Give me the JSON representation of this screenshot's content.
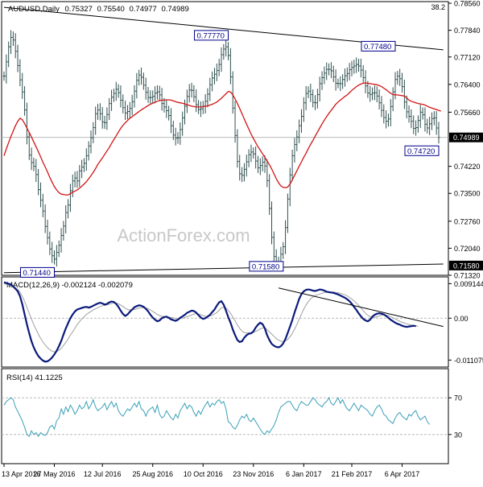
{
  "chart_data": [
    {
      "type": "ohlc",
      "title": "AUDUSD,Daily",
      "ohlc_header": [
        "0.75327",
        "0.75540",
        "0.74977",
        "0.74989"
      ],
      "corner_label": "38.2",
      "watermark": "ActionForex.com",
      "ylim": [
        0.7132,
        0.7856
      ],
      "y_ticks": [
        0.7856,
        0.7784,
        0.7713,
        0.764,
        0.7566,
        0.7499,
        0.7422,
        0.735,
        0.7276,
        0.7204,
        0.7158,
        0.7132
      ],
      "y_tick_labels": [
        "0.78560",
        "0.77840",
        "0.77120",
        "0.76400",
        "0.75660",
        "0.74989",
        "0.74220",
        "0.73500",
        "0.72760",
        "0.72040",
        "0.71580",
        "0.71320"
      ],
      "current_price": "0.74989",
      "support_price": "0.71580",
      "annotations": [
        {
          "text": "0.77770",
          "bar": 98,
          "value": 0.7777
        },
        {
          "text": "0.77480",
          "bar": 171,
          "value": 0.7748
        },
        {
          "text": "0.74720",
          "bar": 190,
          "value": 0.7472
        },
        {
          "text": "0.71440",
          "bar": 22,
          "value": 0.7144
        },
        {
          "text": "0.71580",
          "bar": 121,
          "value": 0.7158
        }
      ],
      "trendlines": [
        {
          "name": "upper",
          "x": [
            0,
            192
          ],
          "y": [
            0.7845,
            0.7732
          ]
        },
        {
          "name": "lower",
          "x": [
            0,
            192
          ],
          "y": [
            0.7139,
            0.7162
          ]
        }
      ],
      "ma_color": "#d21414",
      "price_color": "#2f4f4f",
      "close": [
        0.7662,
        0.77,
        0.774,
        0.7765,
        0.7758,
        0.7728,
        0.769,
        0.7652,
        0.762,
        0.7572,
        0.75,
        0.7452,
        0.7432,
        0.7422,
        0.74,
        0.736,
        0.7332,
        0.7303,
        0.7262,
        0.7232,
        0.7202,
        0.7184,
        0.7175,
        0.7193,
        0.7212,
        0.7238,
        0.7263,
        0.7299,
        0.7319,
        0.7357,
        0.7383,
        0.7391,
        0.7383,
        0.741,
        0.742,
        0.743,
        0.745,
        0.7476,
        0.7498,
        0.7525,
        0.7562,
        0.7572,
        0.7562,
        0.754,
        0.7538,
        0.756,
        0.7589,
        0.7606,
        0.7616,
        0.7627,
        0.7618,
        0.7598,
        0.7578,
        0.7564,
        0.7568,
        0.7576,
        0.7594,
        0.7622,
        0.7651,
        0.7665,
        0.7659,
        0.7638,
        0.7619,
        0.7605,
        0.7605,
        0.7608,
        0.7617,
        0.762,
        0.7612,
        0.7589,
        0.758,
        0.757,
        0.7557,
        0.753,
        0.7505,
        0.7497,
        0.7498,
        0.752,
        0.7551,
        0.7582,
        0.7608,
        0.7625,
        0.7624,
        0.7607,
        0.7586,
        0.7573,
        0.7575,
        0.7582,
        0.7595,
        0.7614,
        0.7639,
        0.7657,
        0.7667,
        0.7677,
        0.7693,
        0.7719,
        0.7734,
        0.774,
        0.7717,
        0.766,
        0.7577,
        0.7504,
        0.7435,
        0.7402,
        0.7398,
        0.7414,
        0.7434,
        0.7453,
        0.746,
        0.7455,
        0.7436,
        0.7418,
        0.7424,
        0.7433,
        0.7423,
        0.7384,
        0.731,
        0.7233,
        0.7182,
        0.7167,
        0.7168,
        0.7188,
        0.7208,
        0.7259,
        0.7335,
        0.7399,
        0.745,
        0.748,
        0.75,
        0.753,
        0.7555,
        0.7591,
        0.7616,
        0.7622,
        0.7613,
        0.7592,
        0.7591,
        0.7613,
        0.7642,
        0.7658,
        0.767,
        0.768,
        0.768,
        0.7676,
        0.766,
        0.7643,
        0.7642,
        0.7642,
        0.7653,
        0.7663,
        0.7669,
        0.7679,
        0.7685,
        0.7689,
        0.7693,
        0.7689,
        0.7678,
        0.7658,
        0.7636,
        0.7617,
        0.7613,
        0.7617,
        0.7618,
        0.7609,
        0.7591,
        0.7571,
        0.7552,
        0.7542,
        0.7548,
        0.7581,
        0.762,
        0.7653,
        0.7662,
        0.7655,
        0.7634,
        0.7593,
        0.7567,
        0.7555,
        0.7542,
        0.7523,
        0.7525,
        0.7544,
        0.7566,
        0.7559,
        0.7534,
        0.7524,
        0.7535,
        0.7549,
        0.7551,
        0.7524,
        0.7499
      ],
      "ma": [
        0.745,
        0.7468,
        0.7485,
        0.7501,
        0.7516,
        0.753,
        0.7542,
        0.755,
        0.7546,
        0.7536,
        0.7524,
        0.7512,
        0.75,
        0.7487,
        0.7474,
        0.7461,
        0.7447,
        0.7433,
        0.742,
        0.7407,
        0.7393,
        0.738,
        0.7368,
        0.7359,
        0.7352,
        0.7348,
        0.7347,
        0.7346,
        0.7346,
        0.7349,
        0.7353,
        0.7356,
        0.7359,
        0.7364,
        0.7369,
        0.7375,
        0.7381,
        0.7389,
        0.7397,
        0.7406,
        0.7416,
        0.7427,
        0.7436,
        0.7444,
        0.7454,
        0.7463,
        0.7472,
        0.7483,
        0.7493,
        0.7503,
        0.7513,
        0.7523,
        0.7531,
        0.7538,
        0.7544,
        0.755,
        0.7554,
        0.7559,
        0.7563,
        0.7568,
        0.7572,
        0.7576,
        0.758,
        0.7584,
        0.7587,
        0.759,
        0.7592,
        0.7595,
        0.7597,
        0.7598,
        0.7598,
        0.7599,
        0.7599,
        0.7598,
        0.7596,
        0.7594,
        0.7592,
        0.7591,
        0.759,
        0.7588,
        0.7586,
        0.7584,
        0.7582,
        0.7581,
        0.758,
        0.758,
        0.758,
        0.7581,
        0.7582,
        0.7583,
        0.7585,
        0.7587,
        0.759,
        0.7593,
        0.7598,
        0.7603,
        0.7609,
        0.7615,
        0.7621,
        0.762,
        0.7612,
        0.7601,
        0.7589,
        0.7576,
        0.7562,
        0.7548,
        0.7534,
        0.7521,
        0.7508,
        0.7496,
        0.7485,
        0.7474,
        0.7465,
        0.7455,
        0.7446,
        0.7436,
        0.7426,
        0.7415,
        0.7402,
        0.7389,
        0.7378,
        0.737,
        0.7366,
        0.7365,
        0.7367,
        0.7375,
        0.7386,
        0.7398,
        0.741,
        0.7422,
        0.7434,
        0.7446,
        0.7457,
        0.7469,
        0.748,
        0.7491,
        0.7502,
        0.7513,
        0.7524,
        0.7535,
        0.7545,
        0.7554,
        0.7563,
        0.7571,
        0.7579,
        0.7587,
        0.7593,
        0.7598,
        0.7603,
        0.7608,
        0.7612,
        0.7618,
        0.7624,
        0.7629,
        0.7634,
        0.7638,
        0.7641,
        0.7643,
        0.7644,
        0.7643,
        0.7642,
        0.7641,
        0.764,
        0.7639,
        0.7637,
        0.7634,
        0.763,
        0.7626,
        0.7621,
        0.7616,
        0.7613,
        0.7612,
        0.7612,
        0.7611,
        0.761,
        0.7609,
        0.7604,
        0.7598,
        0.7595,
        0.7593,
        0.7591,
        0.7589,
        0.7588,
        0.7587,
        0.7585,
        0.7582,
        0.7579,
        0.7577,
        0.7575,
        0.7573,
        0.7571,
        0.7569
      ]
    },
    {
      "type": "line",
      "title": "MACD(12,26,9) -0.002124 -0.002079",
      "ylim": [
        -0.0125,
        0.0105
      ],
      "y_ticks": [
        0.009144,
        0.0,
        -0.011075
      ],
      "y_tick_labels": [
        "0.009144",
        "0.00",
        "-0.011075"
      ],
      "series": [
        {
          "values": [
            0.0095,
            0.0093,
            0.0091,
            0.0089,
            0.0084,
            0.0078,
            0.0071,
            0.0058,
            0.0037,
            0.001,
            -0.0016,
            -0.004,
            -0.0061,
            -0.0077,
            -0.009,
            -0.01,
            -0.0107,
            -0.0112,
            -0.0115,
            -0.0114,
            -0.011,
            -0.0104,
            -0.0096,
            -0.0086,
            -0.0074,
            -0.006,
            -0.0043,
            -0.0027,
            -0.0013,
            0.0,
            0.001,
            0.0018,
            0.0023,
            0.0025,
            0.0027,
            0.0029,
            0.003,
            0.0028,
            0.003,
            0.0033,
            0.0036,
            0.0039,
            0.0041,
            0.0039,
            0.0036,
            0.0038,
            0.0042,
            0.0044,
            0.0043,
            0.0038,
            0.003,
            0.002,
            0.0011,
            0.0006,
            0.001,
            0.0017,
            0.0023,
            0.0029,
            0.0032,
            0.0034,
            0.0033,
            0.003,
            0.0025,
            0.0018,
            0.0009,
            0.0002,
            -0.0004,
            -0.0008,
            -0.0006,
            0.0,
            0.0003,
            0.0004,
            0.0001,
            -0.0003,
            -0.0005,
            -0.0007,
            -0.0004,
            0.0001,
            0.0005,
            0.0009,
            0.0014,
            0.0017,
            0.002,
            0.0019,
            0.0015,
            0.0008,
            0.0002,
            -0.0002,
            0.0,
            0.0004,
            0.0009,
            0.0016,
            0.0023,
            0.0033,
            0.0042,
            0.0045,
            0.0036,
            0.002,
            0.0003,
            -0.0012,
            -0.003,
            -0.0045,
            -0.0058,
            -0.0063,
            -0.0061,
            -0.0052,
            -0.0045,
            -0.0041,
            -0.004,
            -0.0035,
            -0.0025,
            -0.0017,
            -0.0012,
            -0.0016,
            -0.0027,
            -0.0045,
            -0.0058,
            -0.0068,
            -0.0073,
            -0.0076,
            -0.0077,
            -0.0074,
            -0.0067,
            -0.0055,
            -0.0039,
            -0.0022,
            -0.0005,
            0.0015,
            0.0033,
            0.0051,
            0.0064,
            0.0071,
            0.0075,
            0.0076,
            0.0075,
            0.0073,
            0.0072,
            0.0074,
            0.0076,
            0.0075,
            0.0073,
            0.007,
            0.0069,
            0.0068,
            0.0067,
            0.0065,
            0.0063,
            0.006,
            0.0057,
            0.0054,
            0.005,
            0.0045,
            0.0038,
            0.003,
            0.0022,
            0.0013,
            0.0005,
            -0.0002,
            -0.0006,
            -0.0008,
            -0.0004,
            0.0004,
            0.0009,
            0.0012,
            0.0013,
            0.0012,
            0.001,
            0.0006,
            0.0001,
            -0.0004,
            -0.0008,
            -0.0012,
            -0.0015,
            -0.0017,
            -0.002,
            -0.0022,
            -0.0023,
            -0.0022,
            -0.0021,
            -0.002,
            -0.0021
          ]
        },
        {
          "values": [
            0.009,
            0.009,
            0.0089,
            0.0088,
            0.0085,
            0.0081,
            0.0076,
            0.0069,
            0.0058,
            0.0044,
            0.0029,
            0.0013,
            -0.0002,
            -0.0017,
            -0.003,
            -0.0042,
            -0.0053,
            -0.0063,
            -0.0071,
            -0.0078,
            -0.0083,
            -0.0087,
            -0.0089,
            -0.0088,
            -0.0085,
            -0.008,
            -0.0072,
            -0.0064,
            -0.0055,
            -0.0045,
            -0.0036,
            -0.0026,
            -0.0017,
            -0.0009,
            -0.0002,
            0.0004,
            0.001,
            0.0014,
            0.0018,
            0.0022,
            0.0025,
            0.0028,
            0.0031,
            0.0033,
            0.0034,
            0.0035,
            0.0037,
            0.0039,
            0.004,
            0.004,
            0.0038,
            0.0035,
            0.0031,
            0.0026,
            0.0023,
            0.0022,
            0.0022,
            0.0023,
            0.0025,
            0.0027,
            0.0028,
            0.0028,
            0.0027,
            0.0025,
            0.0022,
            0.0018,
            0.0014,
            0.001,
            0.0007,
            0.0005,
            0.0004,
            0.0004,
            0.0003,
            0.0002,
            0.0001,
            -0.0001,
            -0.0002,
            -0.0001,
            0.0,
            0.0002,
            0.0004,
            0.0006,
            0.0009,
            0.0011,
            0.0012,
            0.0011,
            0.0009,
            0.0007,
            0.0005,
            0.0005,
            0.0006,
            0.0008,
            0.0011,
            0.0015,
            0.0021,
            0.0027,
            0.0029,
            0.0027,
            0.0021,
            0.0013,
            0.0003,
            -0.0007,
            -0.0018,
            -0.0027,
            -0.0034,
            -0.0038,
            -0.0039,
            -0.0039,
            -0.0039,
            -0.0038,
            -0.0035,
            -0.0032,
            -0.0028,
            -0.0026,
            -0.0026,
            -0.003,
            -0.0036,
            -0.0042,
            -0.0048,
            -0.0054,
            -0.0058,
            -0.0061,
            -0.0062,
            -0.006,
            -0.0056,
            -0.0049,
            -0.004,
            -0.0029,
            -0.0017,
            -0.0003,
            0.0011,
            0.0024,
            0.0035,
            0.0044,
            0.0051,
            0.0056,
            0.006,
            0.0062,
            0.0064,
            0.0066,
            0.0068,
            0.0069,
            0.0069,
            0.0069,
            0.0069,
            0.0068,
            0.0067,
            0.0066,
            0.0064,
            0.0062,
            0.0059,
            0.0055,
            0.0051,
            0.0046,
            0.004,
            0.0034,
            0.0027,
            0.002,
            0.0013,
            0.0008,
            0.0004,
            0.0002,
            0.0002,
            0.0004,
            0.0006,
            0.0008,
            0.0009,
            0.0008,
            0.0007,
            0.0004,
            0.0001,
            -0.0002,
            -0.0005,
            -0.0008,
            -0.0011,
            -0.0013,
            -0.0015,
            -0.0017,
            -0.0018,
            -0.0019,
            -0.002,
            -0.0021
          ]
        }
      ],
      "trendline": {
        "x": [
          120,
          192
        ],
        "y": [
          0.008,
          -0.0022
        ]
      }
    },
    {
      "type": "line",
      "title": "RSI(14) 41.1225",
      "ylim": [
        0,
        100
      ],
      "y_ticks": [
        70,
        30
      ],
      "y_tick_labels": [
        "70",
        "30"
      ],
      "series": [
        {
          "values": [
            62,
            66,
            68,
            70,
            68,
            60,
            55,
            50,
            45,
            38,
            30,
            28,
            34,
            30,
            32,
            28,
            32,
            30,
            29,
            32,
            38,
            40,
            36,
            45,
            48,
            58,
            52,
            60,
            55,
            62,
            58,
            52,
            56,
            62,
            58,
            60,
            66,
            58,
            62,
            68,
            60,
            56,
            58,
            60,
            64,
            57,
            62,
            66,
            60,
            64,
            56,
            52,
            50,
            54,
            58,
            56,
            60,
            64,
            60,
            66,
            58,
            56,
            50,
            56,
            58,
            60,
            54,
            62,
            52,
            48,
            50,
            56,
            52,
            48,
            46,
            52,
            48,
            56,
            60,
            64,
            58,
            62,
            60,
            54,
            50,
            56,
            52,
            58,
            62,
            66,
            60,
            64,
            62,
            66,
            68,
            64,
            66,
            58,
            44,
            42,
            38,
            36,
            40,
            46,
            50,
            48,
            52,
            46,
            44,
            48,
            44,
            40,
            36,
            32,
            30,
            34,
            32,
            36,
            40,
            46,
            54,
            60,
            62,
            64,
            66,
            66,
            62,
            58,
            56,
            62,
            66,
            64,
            62,
            62,
            66,
            70,
            68,
            64,
            62,
            60,
            64,
            66,
            70,
            64,
            62,
            66,
            70,
            64,
            68,
            62,
            58,
            56,
            60,
            64,
            60,
            56,
            62,
            60,
            58,
            56,
            52,
            50,
            56,
            60,
            62,
            58,
            52,
            50,
            46,
            44,
            42,
            48,
            52,
            54,
            50,
            48,
            46,
            52,
            50,
            54,
            56,
            50,
            46,
            48,
            50,
            44,
            41
          ]
        }
      ]
    }
  ],
  "x_axis": {
    "labels": [
      "13 Apr 2016",
      "27 May 2016",
      "12 Jul 2016",
      "25 Aug 2016",
      "10 Oct 2016",
      "23 Nov 2016",
      "6 Jan 2017",
      "21 Feb 2017",
      "6 Apr 2017"
    ],
    "label_bars": [
      0,
      22,
      43,
      65,
      87,
      109,
      131,
      152,
      174
    ]
  },
  "colors": {
    "axis": "#000000",
    "price": "#2f4f4f",
    "ma": "#d21414",
    "macd": "#0a1a7a",
    "signal": "#a0a0a0",
    "rsi": "#3aa0b8",
    "grid_ref": "#b0b0b0",
    "watermark": "#c8c8c8"
  }
}
